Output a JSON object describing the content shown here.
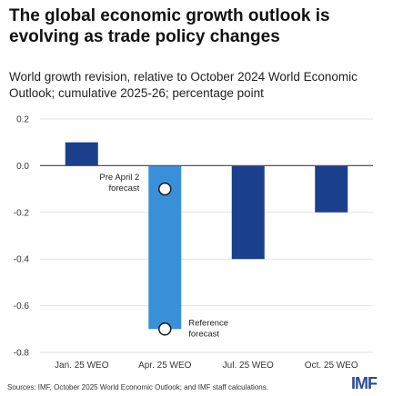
{
  "headline": "The global economic growth outlook is evolving as trade policy changes",
  "chart_data": {
    "type": "bar",
    "title": "The global economic growth outlook is evolving as trade policy changes",
    "subtitle": "World growth revision, relative to October 2024 World Economic Outlook; cumulative 2025-26; percentage point",
    "categories": [
      "Jan. 25 WEO",
      "Apr. 25 WEO",
      "Jul. 25 WEO",
      "Oct. 25 WEO"
    ],
    "values": [
      0.1,
      -0.7,
      -0.4,
      -0.2
    ],
    "highlight_index": 1,
    "ylim": [
      -0.8,
      0.2
    ],
    "yticks": [
      0.2,
      0.0,
      -0.2,
      -0.4,
      -0.6,
      -0.8
    ],
    "ytick_labels": [
      "0.2",
      "0.0",
      "-0.2",
      "-0.4",
      "-0.6",
      "-0.8"
    ],
    "grid": true,
    "xlabel": "",
    "ylabel": "",
    "colors": {
      "bar": "#1a3f8c",
      "highlight": "#3a8fd9",
      "grid": "#e2e2e2",
      "zero_line": "#555555"
    },
    "annotations": [
      {
        "category": "Apr. 25 WEO",
        "value": -0.1,
        "label": [
          "Pre April 2",
          "forecast"
        ],
        "side": "left"
      },
      {
        "category": "Apr. 25 WEO",
        "value": -0.7,
        "label": [
          "Reference",
          "forecast"
        ],
        "side": "right"
      }
    ]
  },
  "source": "Sources: IMF, October 2025 World Economic Outlook; and IMF staff calculations.",
  "logo": "IMF"
}
